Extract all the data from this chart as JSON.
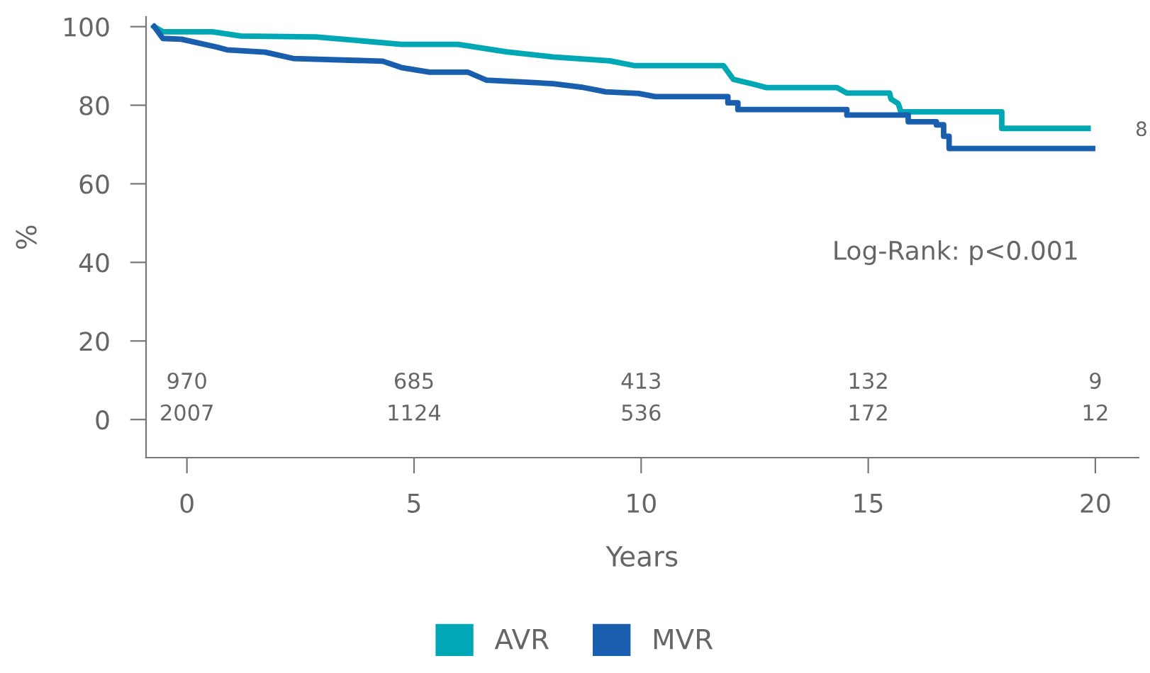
{
  "chart_data": {
    "type": "line",
    "xlabel": "Years",
    "ylabel": "%",
    "xlim": [
      -0.9,
      20.95
    ],
    "xticks": [
      0,
      5,
      10,
      15,
      20
    ],
    "ylim": [
      -9.7,
      102.5
    ],
    "yticks": [
      0,
      20,
      40,
      60,
      80,
      100
    ],
    "grid": false,
    "legend": "bottom",
    "marker": "none",
    "line_style": "solid",
    "series": [
      {
        "name": "AVR",
        "color": "#00a8b5",
        "x": [
          -0.72,
          -0.53,
          0.56,
          1.19,
          2.84,
          4.72,
          5.97,
          7.03,
          8.06,
          9.31,
          9.84,
          11.81,
          12.03,
          12.53,
          12.75,
          14.31,
          14.53,
          15.47,
          15.5,
          15.66,
          15.72,
          17.94,
          17.94,
          19.84
        ],
        "values": [
          100,
          98.7,
          98.7,
          97.6,
          97.4,
          95.5,
          95.5,
          93.6,
          92.3,
          91.3,
          90.1,
          90.1,
          86.6,
          85.2,
          84.5,
          84.5,
          83.1,
          83.1,
          81.6,
          80.4,
          78.3,
          78.3,
          74.1,
          74.1
        ]
      },
      {
        "name": "MVR",
        "color": "#1a5fad",
        "x": [
          -0.72,
          -0.53,
          -0.12,
          0.66,
          0.88,
          1.72,
          2.34,
          4.31,
          4.72,
          5.34,
          6.19,
          6.59,
          8.06,
          8.69,
          9.22,
          9.94,
          10.31,
          11.91,
          11.91,
          12.13,
          12.13,
          14.53,
          14.53,
          15.88,
          15.88,
          16.5,
          16.5,
          16.66,
          16.66,
          16.78,
          16.78,
          19.94
        ],
        "values": [
          100,
          97.0,
          96.8,
          94.8,
          94.1,
          93.5,
          91.9,
          91.2,
          89.6,
          88.4,
          88.4,
          86.4,
          85.5,
          84.6,
          83.4,
          83.0,
          82.2,
          82.2,
          80.6,
          80.6,
          78.9,
          78.9,
          77.5,
          77.5,
          75.8,
          75.8,
          75.0,
          75.0,
          72.1,
          72.1,
          69.0,
          69.0
        ]
      }
    ],
    "annotations": [
      "Log-Rank: p<0.001",
      "970",
      "2007",
      "685",
      "1124",
      "413",
      "536",
      "132",
      "172",
      "9",
      "12",
      "8"
    ]
  }
}
